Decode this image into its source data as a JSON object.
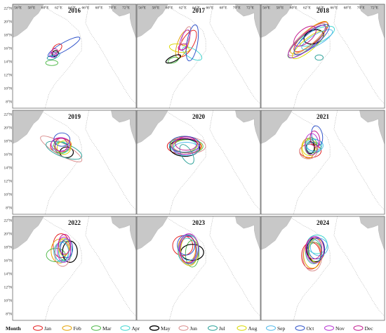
{
  "figure": {
    "x_ticks": [
      "56°E",
      "58°E",
      "60°E",
      "62°E",
      "64°E",
      "66°E",
      "68°E",
      "70°E",
      "72°E"
    ],
    "y_ticks": [
      "8°N",
      "10°N",
      "12°N",
      "14°N",
      "16°N",
      "18°N",
      "20°N",
      "22°N"
    ],
    "panels": [
      {
        "year": "2016",
        "ellipses": [
          {
            "month": "Jan",
            "cx": 61.8,
            "cy": 16.0,
            "rx": 0.8,
            "ry": 0.5,
            "angle": 40
          },
          {
            "month": "Mar",
            "cx": 61.0,
            "cy": 13.8,
            "rx": 0.9,
            "ry": 0.4,
            "angle": 0
          },
          {
            "month": "Apr",
            "cx": 61.6,
            "cy": 15.0,
            "rx": 0.6,
            "ry": 0.4,
            "angle": 20
          },
          {
            "month": "May",
            "cx": 61.5,
            "cy": 15.2,
            "rx": 0.5,
            "ry": 0.4,
            "angle": 30
          },
          {
            "month": "Jul",
            "cx": 61.0,
            "cy": 14.6,
            "rx": 0.7,
            "ry": 0.3,
            "angle": 10
          },
          {
            "month": "Oct",
            "cx": 62.8,
            "cy": 16.2,
            "rx": 2.7,
            "ry": 0.6,
            "angle": 30
          },
          {
            "month": "Nov",
            "cx": 61.2,
            "cy": 15.0,
            "rx": 0.5,
            "ry": 0.4,
            "angle": 0
          },
          {
            "month": "Dec",
            "cx": 61.4,
            "cy": 15.5,
            "rx": 0.5,
            "ry": 0.4,
            "angle": 20
          }
        ]
      },
      {
        "year": "2017",
        "ellipses": [
          {
            "month": "Jan",
            "cx": 62.7,
            "cy": 16.7,
            "rx": 2.2,
            "ry": 0.9,
            "angle": 60
          },
          {
            "month": "Feb",
            "cx": 62.0,
            "cy": 16.6,
            "rx": 2.2,
            "ry": 0.8,
            "angle": 70
          },
          {
            "month": "Mar",
            "cx": 60.6,
            "cy": 14.2,
            "rx": 0.8,
            "ry": 0.4,
            "angle": 20
          },
          {
            "month": "Apr",
            "cx": 63.4,
            "cy": 15.2,
            "rx": 1.6,
            "ry": 0.7,
            "angle": -30
          },
          {
            "month": "May",
            "cx": 60.6,
            "cy": 14.4,
            "rx": 1.2,
            "ry": 0.4,
            "angle": 25
          },
          {
            "month": "Jun",
            "cx": 62.5,
            "cy": 17.8,
            "rx": 1.5,
            "ry": 0.5,
            "angle": 70
          },
          {
            "month": "Aug",
            "cx": 61.5,
            "cy": 16.0,
            "rx": 1.5,
            "ry": 0.6,
            "angle": -10
          },
          {
            "month": "Oct",
            "cx": 63.4,
            "cy": 16.8,
            "rx": 2.7,
            "ry": 0.8,
            "angle": 80
          },
          {
            "month": "Nov",
            "cx": 62.3,
            "cy": 17.2,
            "rx": 1.6,
            "ry": 0.6,
            "angle": 70
          },
          {
            "month": "Dec",
            "cx": 62.0,
            "cy": 16.2,
            "rx": 0.7,
            "ry": 0.4,
            "angle": 20
          }
        ]
      },
      {
        "year": "2018",
        "ellipses": [
          {
            "month": "Jan",
            "cx": 62.6,
            "cy": 17.7,
            "rx": 3.2,
            "ry": 1.0,
            "angle": 40
          },
          {
            "month": "Feb",
            "cx": 62.3,
            "cy": 17.6,
            "rx": 3.5,
            "ry": 1.0,
            "angle": 40
          },
          {
            "month": "Mar",
            "cx": 62.0,
            "cy": 17.0,
            "rx": 3.6,
            "ry": 1.0,
            "angle": 40
          },
          {
            "month": "Apr",
            "cx": 63.5,
            "cy": 17.8,
            "rx": 2.8,
            "ry": 1.0,
            "angle": 25
          },
          {
            "month": "May",
            "cx": 63.0,
            "cy": 17.7,
            "rx": 1.5,
            "ry": 1.0,
            "angle": 20
          },
          {
            "month": "Jun",
            "cx": 62.0,
            "cy": 17.3,
            "rx": 3.5,
            "ry": 1.0,
            "angle": 40
          },
          {
            "month": "Jul",
            "cx": 63.8,
            "cy": 14.6,
            "rx": 0.6,
            "ry": 0.4,
            "angle": 0
          },
          {
            "month": "Aug",
            "cx": 62.2,
            "cy": 16.5,
            "rx": 3.0,
            "ry": 0.9,
            "angle": 40
          },
          {
            "month": "Sep",
            "cx": 63.5,
            "cy": 17.3,
            "rx": 2.6,
            "ry": 0.8,
            "angle": 30
          },
          {
            "month": "Oct",
            "cx": 62.7,
            "cy": 17.3,
            "rx": 3.3,
            "ry": 1.0,
            "angle": 40
          },
          {
            "month": "Nov",
            "cx": 62.0,
            "cy": 17.0,
            "rx": 3.5,
            "ry": 1.1,
            "angle": 40
          },
          {
            "month": "Dec",
            "cx": 61.7,
            "cy": 17.8,
            "rx": 2.0,
            "ry": 1.0,
            "angle": 40
          }
        ]
      },
      {
        "year": "2019",
        "ellipses": [
          {
            "month": "Jan",
            "cx": 62.3,
            "cy": 17.3,
            "rx": 1.5,
            "ry": 1.1,
            "angle": 0
          },
          {
            "month": "Feb",
            "cx": 62.6,
            "cy": 17.4,
            "rx": 1.3,
            "ry": 1.0,
            "angle": 0
          },
          {
            "month": "Mar",
            "cx": 62.4,
            "cy": 17.0,
            "rx": 1.0,
            "ry": 0.8,
            "angle": 0
          },
          {
            "month": "Apr",
            "cx": 62.3,
            "cy": 17.0,
            "rx": 1.2,
            "ry": 0.9,
            "angle": 0
          },
          {
            "month": "May",
            "cx": 63.2,
            "cy": 16.3,
            "rx": 1.0,
            "ry": 0.8,
            "angle": 0
          },
          {
            "month": "Jun",
            "cx": 62.4,
            "cy": 16.8,
            "rx": 3.5,
            "ry": 0.9,
            "angle": -30
          },
          {
            "month": "Jul",
            "cx": 62.8,
            "cy": 16.6,
            "rx": 2.8,
            "ry": 1.0,
            "angle": -20
          },
          {
            "month": "Aug",
            "cx": 62.8,
            "cy": 17.0,
            "rx": 1.0,
            "ry": 1.0,
            "angle": 0
          },
          {
            "month": "Oct",
            "cx": 62.5,
            "cy": 18.2,
            "rx": 1.2,
            "ry": 1.0,
            "angle": 0
          },
          {
            "month": "Nov",
            "cx": 62.3,
            "cy": 17.5,
            "rx": 1.4,
            "ry": 1.0,
            "angle": 0
          },
          {
            "month": "Dec",
            "cx": 62.4,
            "cy": 17.4,
            "rx": 0.9,
            "ry": 1.0,
            "angle": 0
          }
        ]
      },
      {
        "year": "2020",
        "ellipses": [
          {
            "month": "Jan",
            "cx": 62.2,
            "cy": 17.2,
            "rx": 2.5,
            "ry": 1.2,
            "angle": 0
          },
          {
            "month": "Feb",
            "cx": 62.6,
            "cy": 17.2,
            "rx": 2.2,
            "ry": 1.0,
            "angle": 0
          },
          {
            "month": "Mar",
            "cx": 62.8,
            "cy": 17.2,
            "rx": 2.2,
            "ry": 1.0,
            "angle": 0
          },
          {
            "month": "Apr",
            "cx": 62.0,
            "cy": 17.3,
            "rx": 2.0,
            "ry": 1.0,
            "angle": 0
          },
          {
            "month": "May",
            "cx": 62.3,
            "cy": 17.0,
            "rx": 2.2,
            "ry": 1.3,
            "angle": 0
          },
          {
            "month": "Jun",
            "cx": 62.8,
            "cy": 17.4,
            "rx": 2.6,
            "ry": 1.2,
            "angle": -5
          },
          {
            "month": "Jul",
            "cx": 62.6,
            "cy": 16.0,
            "rx": 1.6,
            "ry": 0.8,
            "angle": -60
          },
          {
            "month": "Aug",
            "cx": 62.2,
            "cy": 17.5,
            "rx": 2.0,
            "ry": 1.2,
            "angle": 0
          },
          {
            "month": "Sep",
            "cx": 62.5,
            "cy": 16.8,
            "rx": 1.9,
            "ry": 1.0,
            "angle": 0
          },
          {
            "month": "Oct",
            "cx": 62.3,
            "cy": 17.5,
            "rx": 2.2,
            "ry": 1.2,
            "angle": 0
          },
          {
            "month": "Nov",
            "cx": 62.4,
            "cy": 17.2,
            "rx": 2.0,
            "ry": 1.2,
            "angle": 0
          },
          {
            "month": "Dec",
            "cx": 62.5,
            "cy": 17.6,
            "rx": 1.6,
            "ry": 1.0,
            "angle": 0
          }
        ]
      },
      {
        "year": "2021",
        "ellipses": [
          {
            "month": "Jan",
            "cx": 62.5,
            "cy": 16.5,
            "rx": 1.6,
            "ry": 1.0,
            "angle": 0
          },
          {
            "month": "Feb",
            "cx": 62.2,
            "cy": 16.9,
            "rx": 1.0,
            "ry": 1.5,
            "angle": 0
          },
          {
            "month": "Mar",
            "cx": 62.6,
            "cy": 17.2,
            "rx": 0.9,
            "ry": 1.3,
            "angle": 0
          },
          {
            "month": "Apr",
            "cx": 63.0,
            "cy": 17.4,
            "rx": 1.2,
            "ry": 0.9,
            "angle": 0
          },
          {
            "month": "May",
            "cx": 62.5,
            "cy": 17.0,
            "rx": 0.6,
            "ry": 0.9,
            "angle": 0
          },
          {
            "month": "Jun",
            "cx": 62.2,
            "cy": 16.4,
            "rx": 1.3,
            "ry": 1.1,
            "angle": 0
          },
          {
            "month": "Jul",
            "cx": 63.0,
            "cy": 17.0,
            "rx": 1.1,
            "ry": 0.8,
            "angle": 0
          },
          {
            "month": "Aug",
            "cx": 62.4,
            "cy": 17.0,
            "rx": 1.1,
            "ry": 1.2,
            "angle": 0
          },
          {
            "month": "Sep",
            "cx": 63.2,
            "cy": 17.3,
            "rx": 1.2,
            "ry": 0.9,
            "angle": 0
          },
          {
            "month": "Oct",
            "cx": 63.5,
            "cy": 18.8,
            "rx": 0.8,
            "ry": 1.5,
            "angle": 10
          },
          {
            "month": "Nov",
            "cx": 62.7,
            "cy": 17.5,
            "rx": 1.0,
            "ry": 1.6,
            "angle": 0
          },
          {
            "month": "Dec",
            "cx": 63.2,
            "cy": 18.3,
            "rx": 0.7,
            "ry": 1.2,
            "angle": 10
          }
        ]
      },
      {
        "year": "2022",
        "ellipses": [
          {
            "month": "Jan",
            "cx": 62.4,
            "cy": 18.2,
            "rx": 1.2,
            "ry": 1.8,
            "angle": 0
          },
          {
            "month": "Feb",
            "cx": 62.2,
            "cy": 17.4,
            "rx": 1.3,
            "ry": 1.8,
            "angle": 0
          },
          {
            "month": "Mar",
            "cx": 61.6,
            "cy": 16.8,
            "rx": 1.4,
            "ry": 1.0,
            "angle": 0
          },
          {
            "month": "Apr",
            "cx": 62.4,
            "cy": 17.3,
            "rx": 1.1,
            "ry": 1.4,
            "angle": 0
          },
          {
            "month": "May",
            "cx": 63.7,
            "cy": 17.3,
            "rx": 1.1,
            "ry": 1.6,
            "angle": 0
          },
          {
            "month": "Jun",
            "cx": 62.6,
            "cy": 17.0,
            "rx": 1.2,
            "ry": 1.9,
            "angle": 0
          },
          {
            "month": "Jul",
            "cx": 63.0,
            "cy": 17.4,
            "rx": 1.0,
            "ry": 1.5,
            "angle": 0
          },
          {
            "month": "Aug",
            "cx": 62.8,
            "cy": 18.0,
            "rx": 0.8,
            "ry": 1.3,
            "angle": 0
          },
          {
            "month": "Sep",
            "cx": 62.5,
            "cy": 17.2,
            "rx": 1.0,
            "ry": 1.5,
            "angle": 0
          },
          {
            "month": "Oct",
            "cx": 63.2,
            "cy": 17.8,
            "rx": 0.9,
            "ry": 1.4,
            "angle": 0
          },
          {
            "month": "Nov",
            "cx": 62.8,
            "cy": 17.6,
            "rx": 1.0,
            "ry": 1.9,
            "angle": 0
          },
          {
            "month": "Dec",
            "cx": 62.9,
            "cy": 18.4,
            "rx": 0.9,
            "ry": 1.5,
            "angle": 0
          }
        ]
      },
      {
        "year": "2023",
        "ellipses": [
          {
            "month": "Jan",
            "cx": 62.0,
            "cy": 18.2,
            "rx": 1.5,
            "ry": 1.5,
            "angle": 0
          },
          {
            "month": "Feb",
            "cx": 62.6,
            "cy": 17.7,
            "rx": 1.3,
            "ry": 2.0,
            "angle": 0
          },
          {
            "month": "Mar",
            "cx": 63.4,
            "cy": 17.0,
            "rx": 1.0,
            "ry": 2.0,
            "angle": 0
          },
          {
            "month": "Apr",
            "cx": 62.7,
            "cy": 17.4,
            "rx": 1.4,
            "ry": 1.9,
            "angle": 0
          },
          {
            "month": "May",
            "cx": 63.4,
            "cy": 17.2,
            "rx": 1.7,
            "ry": 1.2,
            "angle": 0
          },
          {
            "month": "Jun",
            "cx": 62.9,
            "cy": 17.6,
            "rx": 1.5,
            "ry": 2.3,
            "angle": 0
          },
          {
            "month": "Jul",
            "cx": 63.0,
            "cy": 17.6,
            "rx": 1.4,
            "ry": 2.1,
            "angle": 0
          },
          {
            "month": "Aug",
            "cx": 63.0,
            "cy": 17.5,
            "rx": 1.3,
            "ry": 2.3,
            "angle": 0
          },
          {
            "month": "Sep",
            "cx": 62.9,
            "cy": 17.9,
            "rx": 1.4,
            "ry": 1.9,
            "angle": 0
          },
          {
            "month": "Oct",
            "cx": 62.5,
            "cy": 18.3,
            "rx": 1.3,
            "ry": 1.5,
            "angle": 0
          },
          {
            "month": "Nov",
            "cx": 62.9,
            "cy": 17.8,
            "rx": 1.4,
            "ry": 2.2,
            "angle": 0
          },
          {
            "month": "Dec",
            "cx": 62.8,
            "cy": 17.6,
            "rx": 1.2,
            "ry": 2.0,
            "angle": 0
          }
        ]
      },
      {
        "year": "2024",
        "ellipses": [
          {
            "month": "Jan",
            "cx": 62.6,
            "cy": 16.7,
            "rx": 1.4,
            "ry": 2.0,
            "angle": 0
          },
          {
            "month": "Feb",
            "cx": 62.8,
            "cy": 16.8,
            "rx": 1.3,
            "ry": 2.0,
            "angle": 0
          },
          {
            "month": "Mar",
            "cx": 63.2,
            "cy": 17.2,
            "rx": 1.0,
            "ry": 1.5,
            "angle": 0
          },
          {
            "month": "Apr",
            "cx": 63.5,
            "cy": 18.4,
            "rx": 1.5,
            "ry": 1.4,
            "angle": 0
          },
          {
            "month": "May",
            "cx": 63.3,
            "cy": 17.6,
            "rx": 1.3,
            "ry": 1.8,
            "angle": 0
          },
          {
            "month": "Jun",
            "cx": 62.8,
            "cy": 16.6,
            "rx": 1.4,
            "ry": 2.2,
            "angle": 0
          },
          {
            "month": "Jul",
            "cx": 63.0,
            "cy": 17.3,
            "rx": 1.2,
            "ry": 1.8,
            "angle": 0
          },
          {
            "month": "Aug",
            "cx": 63.4,
            "cy": 17.5,
            "rx": 1.1,
            "ry": 1.8,
            "angle": 0
          },
          {
            "month": "Sep",
            "cx": 63.8,
            "cy": 18.0,
            "rx": 1.3,
            "ry": 1.3,
            "angle": 0
          },
          {
            "month": "Oct",
            "cx": 63.4,
            "cy": 17.8,
            "rx": 1.2,
            "ry": 1.6,
            "angle": 0
          },
          {
            "month": "Nov",
            "cx": 63.2,
            "cy": 17.6,
            "rx": 1.3,
            "ry": 2.0,
            "angle": 0
          },
          {
            "month": "Dec",
            "cx": 63.0,
            "cy": 17.8,
            "rx": 1.2,
            "ry": 1.6,
            "angle": 0
          }
        ]
      }
    ]
  },
  "legend": {
    "title": "Month",
    "items": [
      {
        "label": "Jan",
        "color": "#e41a1c"
      },
      {
        "label": "Feb",
        "color": "#e5a000"
      },
      {
        "label": "Mar",
        "color": "#4db848"
      },
      {
        "label": "Apr",
        "color": "#3fd6d0"
      },
      {
        "label": "May",
        "color": "#000000"
      },
      {
        "label": "Jun",
        "color": "#d98c8c"
      },
      {
        "label": "Jul",
        "color": "#2aa198"
      },
      {
        "label": "Aug",
        "color": "#d8d800"
      },
      {
        "label": "Sep",
        "color": "#4fb8ea"
      },
      {
        "label": "Oct",
        "color": "#2b4fc9"
      },
      {
        "label": "Nov",
        "color": "#b62fd3"
      },
      {
        "label": "Dec",
        "color": "#c2188e"
      }
    ]
  }
}
